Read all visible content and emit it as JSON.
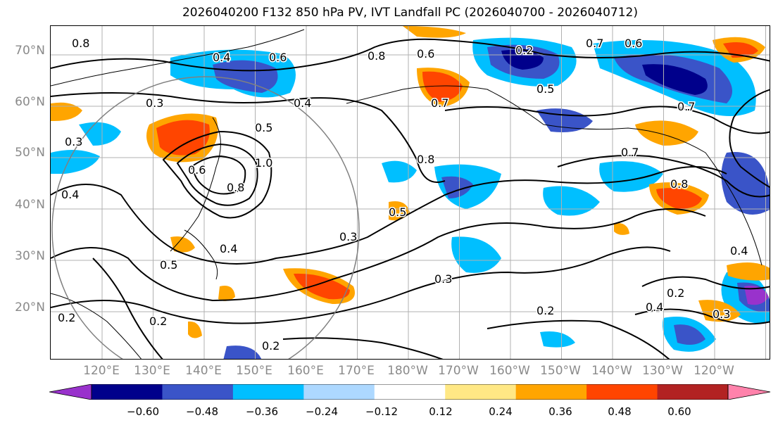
{
  "title": "2026040200 F132 850 hPa PV, IVT Landfall PC (2026040700 - 2026040712)",
  "map": {
    "lat_labels": [
      "70°N",
      "60°N",
      "50°N",
      "40°N",
      "30°N",
      "20°N"
    ],
    "lon_labels": [
      "120°E",
      "130°E",
      "140°E",
      "150°E",
      "160°E",
      "170°E",
      "180°W",
      "170°W",
      "160°W",
      "150°W",
      "140°W",
      "130°W",
      "120°W"
    ],
    "contour_labels": [
      "0.8",
      "0.4",
      "0.6",
      "0.8",
      "0.6",
      "0.7",
      "0.6",
      "0.5",
      "0.7",
      "0.3",
      "0.3",
      "0.5",
      "0.4",
      "1.0",
      "0.6",
      "0.8",
      "0.8",
      "0.7",
      "0.4",
      "0.5",
      "0.3",
      "0.4",
      "0.3",
      "0.2",
      "0.2",
      "0.5",
      "0.2",
      "0.4",
      "0.2",
      "0.3",
      "0.4",
      "0.8",
      "0.7",
      "0.2",
      "0.2"
    ],
    "contour_color": "#000000",
    "circle_color": "#808080",
    "grid_color": "#b0b0b0"
  },
  "colorbar": {
    "colors": [
      "#9932cc",
      "#00008b",
      "#3a54c8",
      "#00bfff",
      "#add8ff",
      "#ffffff",
      "#ffe885",
      "#ffa500",
      "#ff4500",
      "#b22222",
      "#ff82ab"
    ],
    "tick_labels": [
      "−0.60",
      "−0.48",
      "−0.36",
      "−0.24",
      "−0.12",
      "0.12",
      "0.24",
      "0.36",
      "0.48",
      "0.60"
    ]
  }
}
